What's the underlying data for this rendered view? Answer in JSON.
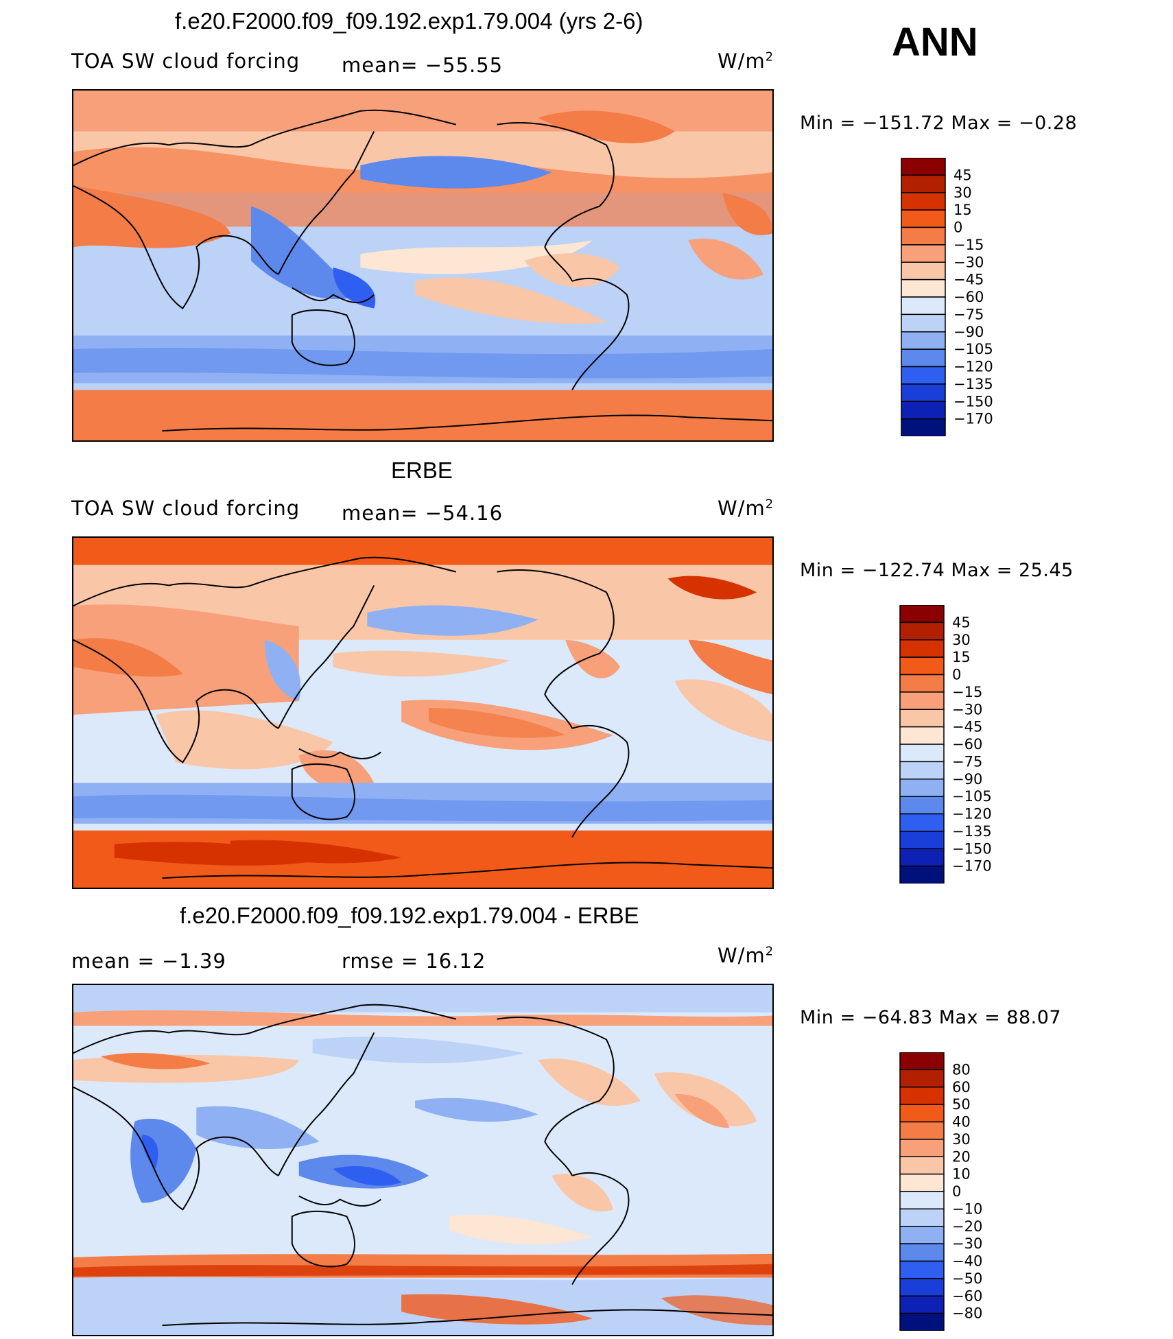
{
  "page": {
    "season": "ANN",
    "colors": {
      "main_scale": [
        "#8b0000",
        "#b22000",
        "#d63200",
        "#f25a1a",
        "#f47c46",
        "#f7a07a",
        "#fac6a8",
        "#fde6d4",
        "#dbe9fb",
        "#bcd2f7",
        "#8fb1f3",
        "#5d88ec",
        "#2f5ff0",
        "#1a3fd9",
        "#0d22b4",
        "#00117e"
      ],
      "diff_scale": [
        "#8b0000",
        "#b22000",
        "#d63200",
        "#f25a1a",
        "#f47c46",
        "#f7a07a",
        "#fac6a8",
        "#fde6d4",
        "#dbe9fb",
        "#bcd2f7",
        "#8fb1f3",
        "#5d88ec",
        "#2f5ff0",
        "#1a3fd9",
        "#0d22b4",
        "#00117e"
      ]
    }
  },
  "panels": [
    {
      "title": "f.e20.F2000.f09_f09.192.exp1.79.004 (yrs 2-6)",
      "left_label": "TOA SW cloud forcing",
      "mid_label": "mean=  −55.55",
      "units": "W/m",
      "units_sup": "2",
      "minmax": "Min  =  −151.72  Max  =    −0.28",
      "colorbar_labels": [
        "45",
        "30",
        "15",
        "0",
        "−15",
        "−30",
        "−45",
        "−60",
        "−75",
        "−90",
        "−105",
        "−120",
        "−135",
        "−150",
        "−170"
      ]
    },
    {
      "title": "ERBE",
      "left_label": "TOA SW cloud forcing",
      "mid_label": "mean=  −54.16",
      "units": "W/m",
      "units_sup": "2",
      "minmax": "Min  =  −122.74  Max  =    25.45",
      "colorbar_labels": [
        "45",
        "30",
        "15",
        "0",
        "−15",
        "−30",
        "−45",
        "−60",
        "−75",
        "−90",
        "−105",
        "−120",
        "−135",
        "−150",
        "−170"
      ]
    },
    {
      "title": "f.e20.F2000.f09_f09.192.exp1.79.004 - ERBE",
      "left_label": "mean  =    −1.39",
      "mid_label": "rmse  =    16.12",
      "units": "W/m",
      "units_sup": "2",
      "minmax": "Min  =  −64.83  Max  =    88.07",
      "colorbar_labels": [
        "80",
        "60",
        "50",
        "40",
        "30",
        "20",
        "10",
        "0",
        "−10",
        "−20",
        "−30",
        "−40",
        "−50",
        "−60",
        "−80"
      ]
    }
  ]
}
